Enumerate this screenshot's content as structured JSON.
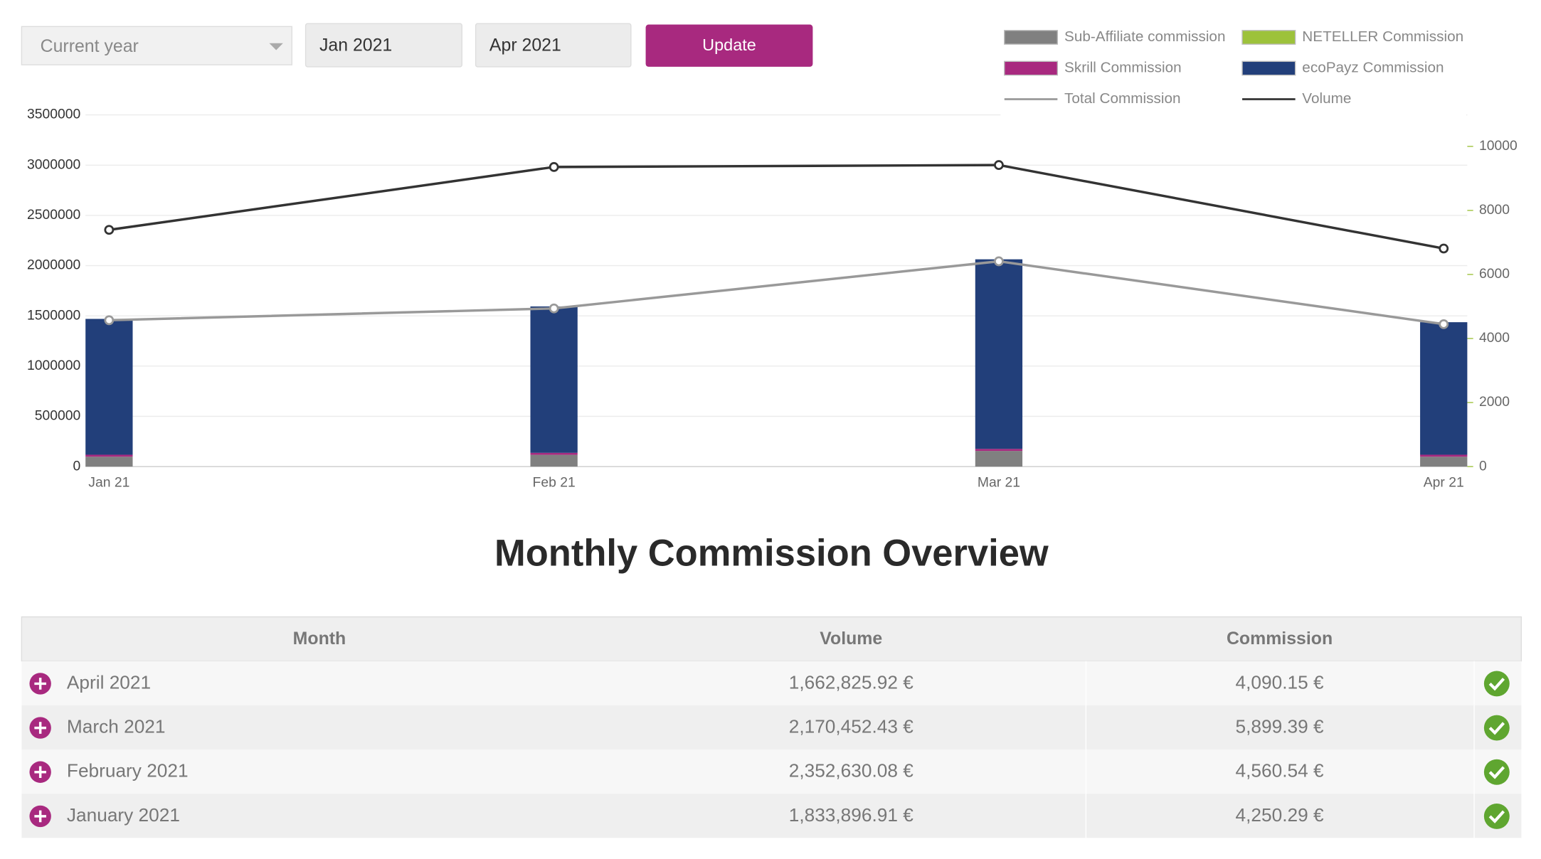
{
  "controls": {
    "period": "Current year",
    "from": "Jan 2021",
    "to": "Apr 2021",
    "button": "Update"
  },
  "chart_data": {
    "type": "bar",
    "stacked": true,
    "grid": true,
    "categories": [
      "Jan 21",
      "Feb 21",
      "Mar 21",
      "Apr 21"
    ],
    "ylim": [
      0,
      3500000
    ],
    "yticks": [
      0,
      500000,
      1000000,
      1500000,
      2000000,
      2500000,
      3000000,
      3500000
    ],
    "y2lim": [
      0,
      10982
    ],
    "y2ticks": [
      0,
      2000,
      4000,
      6000,
      8000,
      10000
    ],
    "series": [
      {
        "name": "Sub-Affiliate commission",
        "color": "#808080",
        "values": [
          98000,
          117000,
          156000,
          98000
        ]
      },
      {
        "name": "NETELLER Commission",
        "color": "#9dc23b",
        "values": [
          0,
          0,
          0,
          0
        ]
      },
      {
        "name": "Skrill Commission",
        "color": "#a8297f",
        "values": [
          20000,
          20000,
          20000,
          20000
        ]
      },
      {
        "name": "ecoPayz Commission",
        "color": "#223f7a",
        "values": [
          1352000,
          1457000,
          1887000,
          1319000
        ]
      },
      {
        "name": "Total Commission",
        "type": "line",
        "axis": "y2",
        "color": "#999999",
        "values": [
          4571,
          4939,
          6411,
          4448
        ]
      },
      {
        "name": "Volume",
        "type": "line",
        "axis": "y2",
        "color": "#333333",
        "values": [
          7393,
          9356,
          9417,
          6810
        ]
      }
    ]
  },
  "table": {
    "title": "Monthly Commission Overview",
    "columns": [
      "Month",
      "Volume",
      "Commission"
    ],
    "rows": [
      [
        "April 2021",
        "1,662,825.92 €",
        "4,090.15 €"
      ],
      [
        "March 2021",
        "2,170,452.43 €",
        "5,899.39 €"
      ],
      [
        "February 2021",
        "2,352,630.08 €",
        "4,560.54 €"
      ],
      [
        "January 2021",
        "1,833,896.91 €",
        "4,250.29 €"
      ]
    ]
  }
}
